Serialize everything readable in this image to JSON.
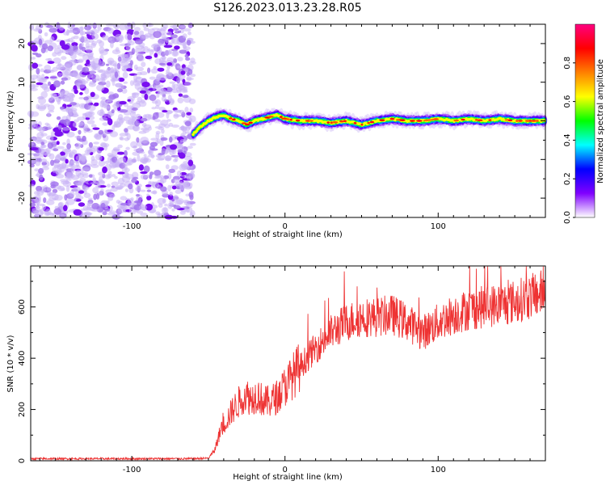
{
  "figure": {
    "title": "S126.2023.013.23.28.R05"
  },
  "chart_data": [
    {
      "type": "heatmap",
      "xlabel": "Height of straight line (km)",
      "ylabel": "Frequency (Hz)",
      "xlim": [
        -166,
        170
      ],
      "ylim": [
        -25,
        25
      ],
      "xticks": [
        -100,
        0,
        100
      ],
      "yticks": [
        -20,
        -10,
        0,
        10,
        20
      ],
      "colorbar": {
        "label": "Normalized spectral amplitude",
        "range": [
          0.0,
          1.0
        ],
        "ticks": [
          0.0,
          0.2,
          0.4,
          0.6,
          0.8
        ],
        "colors": [
          "#ffffff",
          "#8000ff",
          "#0000ff",
          "#00ffff",
          "#00ff00",
          "#ffff00",
          "#ff8000",
          "#ff0000",
          "#ff0080"
        ]
      },
      "noise_region": {
        "x_from": -166,
        "x_to": -60,
        "freq_from": -25,
        "freq_to": 25,
        "amplitude_range": [
          0.0,
          0.3
        ]
      },
      "signal_track": {
        "x": [
          -60,
          -55,
          -50,
          -45,
          -40,
          -35,
          -30,
          -25,
          -20,
          -15,
          -10,
          -5,
          0,
          10,
          20,
          30,
          40,
          50,
          60,
          70,
          80,
          90,
          100,
          110,
          120,
          130,
          140,
          150,
          160,
          170
        ],
        "freq": [
          -3.5,
          -1.5,
          0,
          1,
          1.5,
          0.5,
          0,
          -1,
          0,
          0.5,
          1,
          1.5,
          0.5,
          0,
          0,
          -0.5,
          0,
          -1,
          0,
          0.5,
          0,
          0,
          0.5,
          0,
          0.5,
          0,
          0.5,
          0,
          0,
          0
        ],
        "peak_amplitude": 0.9
      }
    },
    {
      "type": "line",
      "xlabel": "Height of straight line (km)",
      "ylabel": "SNR (10 * v/v)",
      "xlim": [
        -166,
        170
      ],
      "ylim": [
        0,
        760
      ],
      "xticks": [
        -100,
        0,
        100
      ],
      "yticks": [
        0,
        200,
        400,
        600
      ],
      "series": [
        {
          "color": "#ee3333",
          "x": [
            -166,
            -60,
            -50,
            -46,
            -42,
            -38,
            -34,
            -30,
            -26,
            -22,
            -18,
            -14,
            -10,
            -5,
            0,
            5,
            10,
            20,
            30,
            40,
            50,
            60,
            70,
            80,
            90,
            100,
            110,
            120,
            130,
            140,
            150,
            160,
            170
          ],
          "y": [
            8,
            8,
            10,
            40,
            120,
            160,
            200,
            230,
            260,
            240,
            260,
            230,
            230,
            250,
            290,
            330,
            370,
            440,
            500,
            540,
            560,
            560,
            570,
            540,
            500,
            540,
            570,
            590,
            600,
            610,
            620,
            640,
            660
          ]
        }
      ]
    }
  ]
}
